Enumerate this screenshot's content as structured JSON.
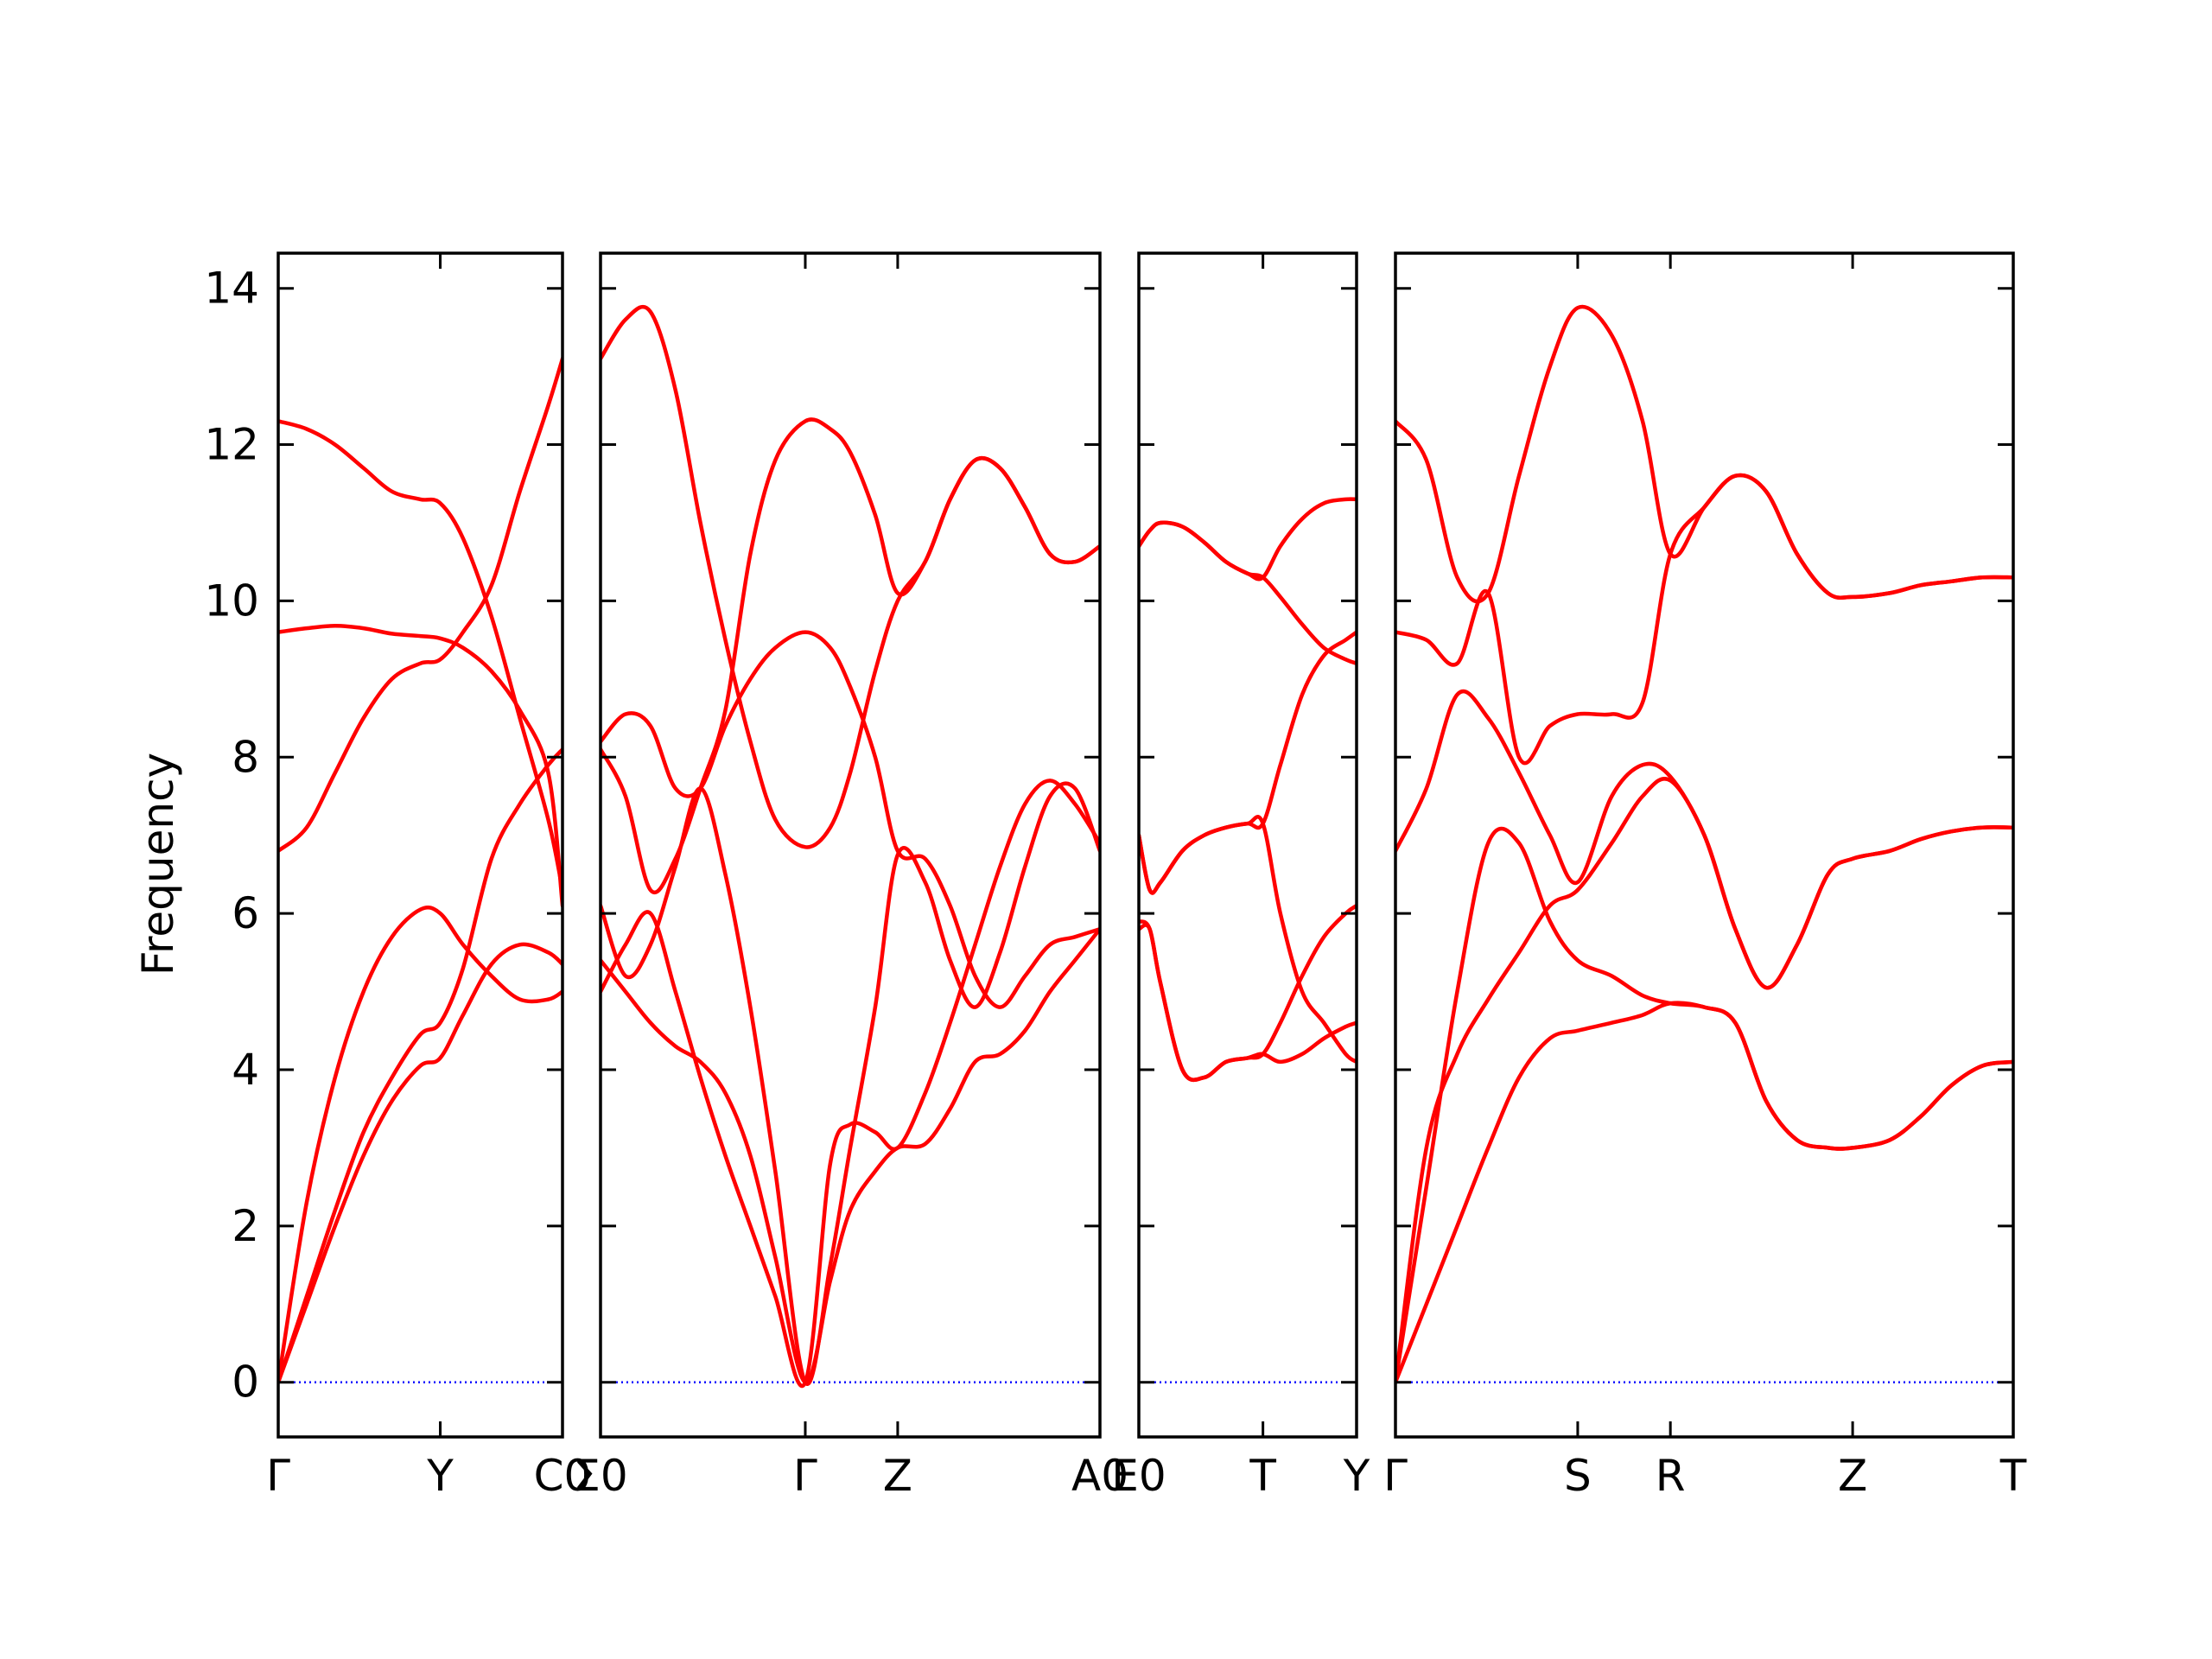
{
  "chart_data": {
    "type": "line",
    "ylabel": "Frequency",
    "ylim": [
      -0.7,
      14.45
    ],
    "yticks": [
      0,
      2,
      4,
      6,
      8,
      10,
      12,
      14
    ],
    "grid": false,
    "legend": "none",
    "colors": {
      "band": "#ff0000",
      "zero_line": "#0000ff",
      "axis": "#000000"
    },
    "panels": [
      {
        "name": "Γ-Y-C0",
        "xlim": [
          0,
          1
        ],
        "xticks": [
          {
            "x": 0,
            "label": "Γ"
          },
          {
            "x": 0.57,
            "label": "Y"
          },
          {
            "x": 1.0,
            "label": "C0"
          }
        ],
        "bands": [
          {
            "x": [
              0,
              0.1,
              0.2,
              0.3,
              0.4,
              0.5,
              0.57,
              0.65,
              0.75,
              0.85,
              0.95,
              1.0
            ],
            "y": [
              0,
              1.0,
              2.0,
              2.9,
              3.6,
              4.05,
              4.15,
              4.7,
              5.35,
              5.6,
              5.5,
              5.35
            ]
          },
          {
            "x": [
              0,
              0.1,
              0.2,
              0.3,
              0.4,
              0.5,
              0.57,
              0.65,
              0.75,
              0.85,
              0.95,
              1.0
            ],
            "y": [
              0,
              1.1,
              2.2,
              3.2,
              3.9,
              4.45,
              4.6,
              5.3,
              6.7,
              7.4,
              7.9,
              8.1
            ]
          },
          {
            "x": [
              0,
              0.1,
              0.2,
              0.3,
              0.4,
              0.5,
              0.57,
              0.65,
              0.75,
              0.85,
              0.95,
              1.0
            ],
            "y": [
              0,
              2.3,
              3.9,
              5.0,
              5.7,
              6.05,
              6.0,
              5.6,
              5.2,
              4.9,
              4.9,
              5.0
            ]
          },
          {
            "x": [
              0,
              0.1,
              0.2,
              0.3,
              0.4,
              0.5,
              0.57,
              0.65,
              0.75,
              0.85,
              0.95,
              1.0
            ],
            "y": [
              6.8,
              7.1,
              7.8,
              8.5,
              9.0,
              9.2,
              9.25,
              9.6,
              10.2,
              11.4,
              12.5,
              13.1
            ]
          },
          {
            "x": [
              0,
              0.1,
              0.2,
              0.3,
              0.4,
              0.5,
              0.57,
              0.65,
              0.75,
              0.85,
              0.95,
              1.0
            ],
            "y": [
              9.6,
              9.65,
              9.68,
              9.65,
              9.58,
              9.55,
              9.52,
              9.4,
              9.1,
              8.6,
              7.8,
              6.1
            ]
          },
          {
            "x": [
              0,
              0.1,
              0.2,
              0.3,
              0.4,
              0.5,
              0.57,
              0.65,
              0.75,
              0.85,
              0.95,
              1.0
            ],
            "y": [
              12.3,
              12.2,
              12.0,
              11.7,
              11.4,
              11.3,
              11.25,
              10.8,
              9.8,
              8.5,
              7.2,
              6.3
            ]
          }
        ]
      },
      {
        "name": "Σ0-Γ-Z-A0",
        "xlim": [
          0,
          1
        ],
        "xticks": [
          {
            "x": 0,
            "label": "Σ0"
          },
          {
            "x": 0.41,
            "label": "Γ"
          },
          {
            "x": 0.595,
            "label": "Z"
          },
          {
            "x": 1.0,
            "label": "A0"
          }
        ],
        "bands": [
          {
            "x": [
              0,
              0.05,
              0.1,
              0.15,
              0.2,
              0.25,
              0.3,
              0.35,
              0.41,
              0.46,
              0.5,
              0.55,
              0.595,
              0.65,
              0.7,
              0.75,
              0.8,
              0.85,
              0.9,
              0.95,
              1.0
            ],
            "y": [
              5.4,
              5.0,
              4.6,
              4.3,
              4.1,
              3.7,
              2.9,
              1.6,
              0,
              1.3,
              2.2,
              2.7,
              3.0,
              3.05,
              3.5,
              4.1,
              4.2,
              4.5,
              5.0,
              5.4,
              5.8
            ]
          },
          {
            "x": [
              0,
              0.05,
              0.1,
              0.15,
              0.2,
              0.25,
              0.3,
              0.35,
              0.41,
              0.46,
              0.5,
              0.55,
              0.595,
              0.65,
              0.7,
              0.75,
              0.8,
              0.85,
              0.9,
              0.95,
              1.0
            ],
            "y": [
              5.0,
              5.6,
              6.0,
              5.0,
              3.9,
              2.9,
              2.0,
              1.1,
              0,
              2.8,
              3.3,
              3.2,
              3.0,
              3.7,
              4.6,
              5.6,
              6.6,
              7.4,
              7.7,
              7.4,
              6.9
            ]
          },
          {
            "x": [
              0,
              0.05,
              0.1,
              0.15,
              0.2,
              0.25,
              0.3,
              0.35,
              0.41,
              0.46,
              0.5,
              0.55,
              0.595,
              0.65,
              0.7,
              0.75,
              0.8,
              0.85,
              0.9,
              0.95,
              1.0
            ],
            "y": [
              6.1,
              5.2,
              5.6,
              6.6,
              7.6,
              6.5,
              4.8,
              2.7,
              0,
              1.5,
              3.0,
              4.8,
              6.75,
              6.4,
              5.4,
              4.8,
              5.5,
              6.6,
              7.5,
              7.6,
              6.8
            ]
          },
          {
            "x": [
              0,
              0.05,
              0.1,
              0.15,
              0.2,
              0.25,
              0.3,
              0.35,
              0.41,
              0.46,
              0.5,
              0.55,
              0.595,
              0.65,
              0.7,
              0.75,
              0.8,
              0.85,
              0.9,
              0.95,
              1.0
            ],
            "y": [
              8.2,
              8.55,
              8.4,
              7.6,
              7.6,
              8.4,
              9.0,
              9.4,
              9.6,
              9.4,
              8.9,
              8.0,
              6.8,
              6.7,
              6.1,
              5.2,
              4.8,
              5.2,
              5.6,
              5.7,
              5.8
            ]
          },
          {
            "x": [
              0,
              0.05,
              0.1,
              0.15,
              0.2,
              0.25,
              0.3,
              0.35,
              0.41,
              0.46,
              0.5,
              0.55,
              0.595,
              0.65,
              0.7,
              0.75,
              0.8,
              0.85,
              0.9,
              0.95,
              1.0
            ],
            "y": [
              8.1,
              7.5,
              6.3,
              6.7,
              7.6,
              8.6,
              10.6,
              11.8,
              12.3,
              12.2,
              11.9,
              11.1,
              10.1,
              10.5,
              11.3,
              11.8,
              11.7,
              11.2,
              10.6,
              10.5,
              10.7
            ]
          },
          {
            "x": [
              0,
              0.05,
              0.1,
              0.15,
              0.2,
              0.25,
              0.3,
              0.35,
              0.41,
              0.46,
              0.5,
              0.55,
              0.595,
              0.65,
              0.7,
              0.75,
              0.8,
              0.85,
              0.9,
              0.95,
              1.0
            ],
            "y": [
              13.1,
              13.6,
              13.7,
              12.7,
              11.0,
              9.5,
              8.2,
              7.2,
              6.85,
              7.1,
              7.8,
              9.1,
              10.0,
              10.5,
              11.3,
              11.8,
              11.7,
              11.2,
              10.6,
              10.5,
              10.7
            ]
          }
        ]
      },
      {
        "name": "E0-T-Y",
        "xlim": [
          0,
          1
        ],
        "xticks": [
          {
            "x": 0,
            "label": "E0"
          },
          {
            "x": 0.57,
            "label": "T"
          },
          {
            "x": 1.0,
            "label": "Y"
          }
        ],
        "bands": [
          {
            "x": [
              0,
              0.05,
              0.1,
              0.2,
              0.3,
              0.4,
              0.5,
              0.57,
              0.65,
              0.75,
              0.85,
              0.95,
              1.0
            ],
            "y": [
              5.8,
              5.8,
              5.1,
              4.0,
              3.9,
              4.1,
              4.15,
              4.2,
              4.1,
              4.2,
              4.4,
              4.55,
              4.6
            ]
          },
          {
            "x": [
              0,
              0.05,
              0.1,
              0.2,
              0.3,
              0.4,
              0.5,
              0.57,
              0.65,
              0.75,
              0.85,
              0.95,
              1.0
            ],
            "y": [
              7.0,
              6.3,
              6.4,
              6.8,
              7.0,
              7.1,
              7.15,
              7.15,
              6.0,
              5.0,
              4.6,
              4.2,
              4.1
            ]
          },
          {
            "x": [
              0,
              0.05,
              0.1,
              0.2,
              0.3,
              0.4,
              0.5,
              0.57,
              0.65,
              0.75,
              0.85,
              0.95,
              1.0
            ],
            "y": [
              5.9,
              5.8,
              5.1,
              4.0,
              3.9,
              4.1,
              4.15,
              4.2,
              4.6,
              5.2,
              5.7,
              6.0,
              6.1
            ]
          },
          {
            "x": [
              0,
              0.05,
              0.1,
              0.2,
              0.3,
              0.4,
              0.5,
              0.57,
              0.65,
              0.75,
              0.85,
              0.95,
              1.0
            ],
            "y": [
              7.0,
              6.3,
              6.4,
              6.8,
              7.0,
              7.1,
              7.15,
              7.15,
              7.9,
              8.8,
              9.3,
              9.5,
              9.6
            ]
          },
          {
            "x": [
              0,
              0.05,
              0.1,
              0.2,
              0.3,
              0.4,
              0.5,
              0.57,
              0.65,
              0.75,
              0.85,
              0.95,
              1.0
            ],
            "y": [
              10.7,
              10.9,
              11.0,
              10.95,
              10.75,
              10.5,
              10.35,
              10.3,
              10.05,
              9.7,
              9.4,
              9.25,
              9.2
            ]
          },
          {
            "x": [
              0,
              0.05,
              0.1,
              0.2,
              0.3,
              0.4,
              0.5,
              0.57,
              0.65,
              0.75,
              0.85,
              0.95,
              1.0
            ],
            "y": [
              10.7,
              10.9,
              11.0,
              10.95,
              10.75,
              10.5,
              10.35,
              10.3,
              10.7,
              11.05,
              11.25,
              11.3,
              11.3
            ]
          }
        ]
      },
      {
        "name": "Γ-S-R-Z-T",
        "xlim": [
          0,
          1
        ],
        "xticks": [
          {
            "x": 0,
            "label": "Γ"
          },
          {
            "x": 0.295,
            "label": "S"
          },
          {
            "x": 0.445,
            "label": "R"
          },
          {
            "x": 0.74,
            "label": "Z"
          },
          {
            "x": 1.0,
            "label": "T"
          }
        ],
        "bands": [
          {
            "x": [
              0,
              0.05,
              0.1,
              0.15,
              0.2,
              0.25,
              0.295,
              0.35,
              0.4,
              0.445,
              0.5,
              0.55,
              0.6,
              0.65,
              0.7,
              0.74,
              0.8,
              0.85,
              0.9,
              0.95,
              1.0
            ],
            "y": [
              0,
              1.0,
              2.0,
              3.0,
              3.9,
              4.4,
              4.5,
              4.6,
              4.7,
              4.85,
              4.8,
              4.6,
              3.6,
              3.1,
              3.0,
              3.0,
              3.1,
              3.4,
              3.8,
              4.05,
              4.1
            ]
          },
          {
            "x": [
              0,
              0.05,
              0.1,
              0.15,
              0.2,
              0.25,
              0.295,
              0.35,
              0.4,
              0.445,
              0.5,
              0.55,
              0.6,
              0.65,
              0.7,
              0.74,
              0.8,
              0.85,
              0.9,
              0.95,
              1.0
            ],
            "y": [
              0,
              3.0,
              4.2,
              4.9,
              5.5,
              6.1,
              6.3,
              6.9,
              7.5,
              7.7,
              7.0,
              5.8,
              5.05,
              5.6,
              6.5,
              6.7,
              6.8,
              6.95,
              7.05,
              7.1,
              7.1
            ]
          },
          {
            "x": [
              0,
              0.05,
              0.1,
              0.15,
              0.2,
              0.25,
              0.295,
              0.35,
              0.4,
              0.445,
              0.5,
              0.55,
              0.6,
              0.65,
              0.7,
              0.74,
              0.8,
              0.85,
              0.9,
              0.95,
              1.0
            ],
            "y": [
              0,
              2.5,
              5.0,
              6.9,
              6.9,
              5.9,
              5.4,
              5.2,
              4.95,
              4.85,
              4.8,
              4.6,
              3.6,
              3.1,
              3.0,
              3.0,
              3.1,
              3.4,
              3.8,
              4.05,
              4.1
            ]
          },
          {
            "x": [
              0,
              0.05,
              0.1,
              0.15,
              0.2,
              0.25,
              0.295,
              0.35,
              0.4,
              0.445,
              0.5,
              0.55,
              0.6,
              0.65,
              0.7,
              0.74,
              0.8,
              0.85,
              0.9,
              0.95,
              1.0
            ],
            "y": [
              6.8,
              7.6,
              8.8,
              8.5,
              7.8,
              7.0,
              6.4,
              7.5,
              7.9,
              7.75,
              7.0,
              5.8,
              5.05,
              5.6,
              6.5,
              6.7,
              6.8,
              6.95,
              7.05,
              7.1,
              7.1
            ]
          },
          {
            "x": [
              0,
              0.05,
              0.1,
              0.15,
              0.2,
              0.25,
              0.295,
              0.35,
              0.4,
              0.445,
              0.5,
              0.55,
              0.6,
              0.65,
              0.7,
              0.74,
              0.8,
              0.85,
              0.9,
              0.95,
              1.0
            ],
            "y": [
              9.6,
              9.5,
              9.2,
              10.1,
              8.0,
              8.4,
              8.55,
              8.55,
              8.7,
              10.6,
              11.2,
              11.6,
              11.4,
              10.6,
              10.1,
              10.05,
              10.1,
              10.2,
              10.25,
              10.3,
              10.3
            ]
          },
          {
            "x": [
              0,
              0.05,
              0.1,
              0.15,
              0.2,
              0.25,
              0.295,
              0.35,
              0.4,
              0.445,
              0.5,
              0.55,
              0.6,
              0.65,
              0.7,
              0.74,
              0.8,
              0.85,
              0.9,
              0.95,
              1.0
            ],
            "y": [
              12.3,
              11.8,
              10.3,
              10.1,
              11.6,
              13.0,
              13.75,
              13.4,
              12.3,
              10.6,
              11.2,
              11.6,
              11.4,
              10.6,
              10.1,
              10.05,
              10.1,
              10.2,
              10.25,
              10.3,
              10.3
            ]
          }
        ]
      }
    ]
  }
}
